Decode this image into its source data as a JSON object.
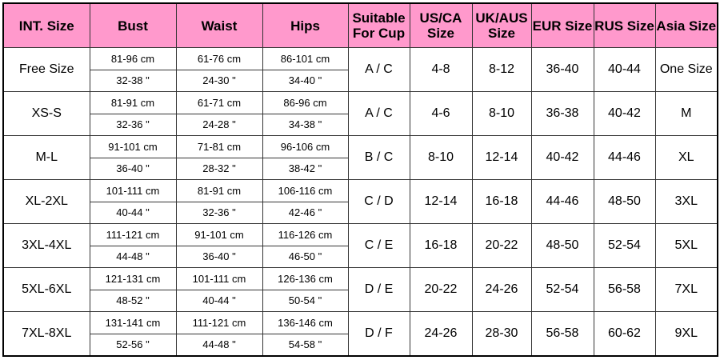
{
  "header": [
    "INT. Size",
    "Bust",
    "Waist",
    "Hips",
    "Suitable For Cup",
    "US/CA Size",
    "UK/AUS Size",
    "EUR Size",
    "RUS Size",
    "Asia Size"
  ],
  "header_color": "#ff99cc",
  "rows": [
    {
      "int": "Free Size",
      "bust_cm": "81-96 cm",
      "bust_in": "32-38 \"",
      "waist_cm": "61-76 cm",
      "waist_in": "24-30 \"",
      "hips_cm": "86-101 cm",
      "hips_in": "34-40 \"",
      "cup": "A / C",
      "us": "4-8",
      "uk": "8-12",
      "eur": "36-40",
      "rus": "40-44",
      "asia": "One Size"
    },
    {
      "int": "XS-S",
      "bust_cm": "81-91 cm",
      "bust_in": "32-36 \"",
      "waist_cm": "61-71 cm",
      "waist_in": "24-28 \"",
      "hips_cm": "86-96 cm",
      "hips_in": "34-38 \"",
      "cup": "A / C",
      "us": "4-6",
      "uk": "8-10",
      "eur": "36-38",
      "rus": "40-42",
      "asia": "M"
    },
    {
      "int": "M-L",
      "bust_cm": "91-101 cm",
      "bust_in": "36-40 \"",
      "waist_cm": "71-81 cm",
      "waist_in": "28-32 \"",
      "hips_cm": "96-106 cm",
      "hips_in": "38-42 \"",
      "cup": "B / C",
      "us": "8-10",
      "uk": "12-14",
      "eur": "40-42",
      "rus": "44-46",
      "asia": "XL"
    },
    {
      "int": "XL-2XL",
      "bust_cm": "101-111 cm",
      "bust_in": "40-44 \"",
      "waist_cm": "81-91 cm",
      "waist_in": "32-36 \"",
      "hips_cm": "106-116 cm",
      "hips_in": "42-46 \"",
      "cup": "C / D",
      "us": "12-14",
      "uk": "16-18",
      "eur": "44-46",
      "rus": "48-50",
      "asia": "3XL"
    },
    {
      "int": "3XL-4XL",
      "bust_cm": "111-121 cm",
      "bust_in": "44-48 \"",
      "waist_cm": "91-101 cm",
      "waist_in": "36-40 \"",
      "hips_cm": "116-126 cm",
      "hips_in": "46-50 \"",
      "cup": "C / E",
      "us": "16-18",
      "uk": "20-22",
      "eur": "48-50",
      "rus": "52-54",
      "asia": "5XL"
    },
    {
      "int": "5XL-6XL",
      "bust_cm": "121-131 cm",
      "bust_in": "48-52 \"",
      "waist_cm": "101-111 cm",
      "waist_in": "40-44 \"",
      "hips_cm": "126-136 cm",
      "hips_in": "50-54 \"",
      "cup": "D / E",
      "us": "20-22",
      "uk": "24-26",
      "eur": "52-54",
      "rus": "56-58",
      "asia": "7XL"
    },
    {
      "int": "7XL-8XL",
      "bust_cm": "131-141 cm",
      "bust_in": "52-56 \"",
      "waist_cm": "111-121 cm",
      "waist_in": "44-48 \"",
      "hips_cm": "136-146 cm",
      "hips_in": "54-58 \"",
      "cup": "D / F",
      "us": "24-26",
      "uk": "28-30",
      "eur": "56-58",
      "rus": "60-62",
      "asia": "9XL"
    }
  ]
}
